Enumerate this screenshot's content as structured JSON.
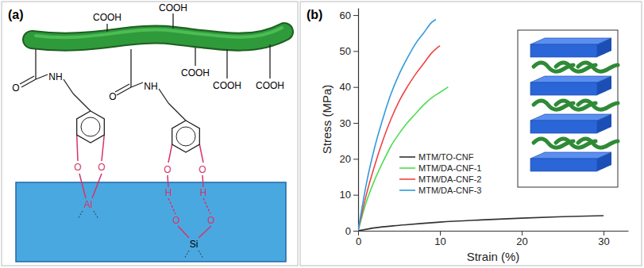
{
  "panel_labels": [
    "(a)",
    "(b)"
  ],
  "diagram": {
    "labels": [
      "COOH",
      "COOH",
      "COOH",
      "COOH",
      "COOH",
      "O",
      "NH",
      "O",
      "NH",
      "O",
      "O",
      "Al",
      "O",
      "O",
      "H",
      "H",
      "O",
      "O",
      "Si"
    ]
  },
  "chart_data": {
    "type": "line",
    "x_label": "Strain (%)",
    "y_label": "Stress (MPa)",
    "xlim": [
      0,
      33
    ],
    "xticks": [
      0,
      10,
      20,
      30
    ],
    "ylim": [
      0,
      62
    ],
    "yticks": [
      0,
      10,
      20,
      30,
      40,
      50,
      60
    ],
    "legend": "lower left",
    "series": [
      {
        "name": "MTM/TO-CNF",
        "color": "#333333",
        "x": [
          0,
          2,
          5,
          10,
          15,
          20,
          25,
          30
        ],
        "values": [
          0,
          0.8,
          1.5,
          2.4,
          3.0,
          3.5,
          3.9,
          4.2
        ]
      },
      {
        "name": "MTM/DA-CNF-1",
        "color": "#4fdc55",
        "x": [
          0,
          1,
          2,
          3,
          4,
          5,
          6,
          7,
          8,
          9,
          10,
          11
        ],
        "values": [
          0,
          8,
          14,
          19,
          23.5,
          27,
          30,
          32.5,
          35,
          37,
          38.5,
          40
        ]
      },
      {
        "name": "MTM/DA-CNF-2",
        "color": "#ef4444",
        "x": [
          0,
          1,
          2,
          3,
          4,
          5,
          6,
          7,
          8,
          9,
          10
        ],
        "values": [
          0,
          10,
          18,
          25,
          31,
          36,
          40,
          43.5,
          46.5,
          49.5,
          51.5
        ]
      },
      {
        "name": "MTM/DA-CNF-3",
        "color": "#3399dd",
        "x": [
          0,
          1,
          2,
          3,
          4,
          5,
          6,
          7,
          8,
          9,
          9.5
        ],
        "values": [
          0,
          13,
          23,
          31,
          38,
          43.5,
          48,
          52,
          55,
          58,
          58.8
        ]
      }
    ]
  }
}
